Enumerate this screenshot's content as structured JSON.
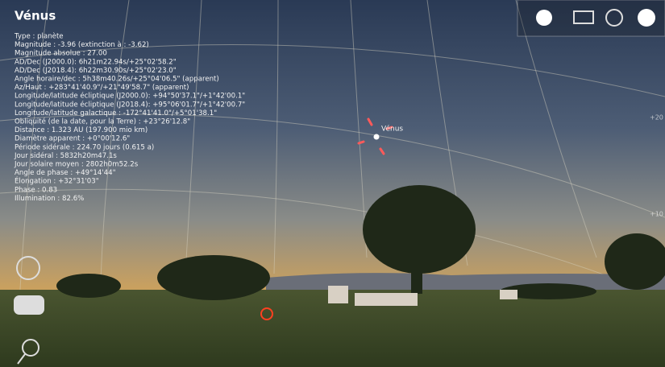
{
  "object": {
    "name": "Vénus",
    "sky_label": "Vénus",
    "info_lines": [
      "Type : planète",
      "Magnitude : -3.96 (extinction à : -3.62)",
      "Magnitude absolue : 27.00",
      "AD/Dec (J2000.0): 6h21m22.94s/+25°02'58.2\"",
      "AD/Dec (J2018.4): 6h22m30.90s/+25°02'23.0\"",
      "Angle horaire/dec : 5h38m40.26s/+25°04'06.5\" (apparent)",
      "Az/Haut : +283°41'40.9\"/+21°49'58.7\" (apparent)",
      "Longitude/latitude écliptique (J2000.0): +94°50'37.1\"/+1°42'00.1\"",
      "Longitude/latitude écliptique (J2018.4): +95°06'01.7\"/+1°42'00.7\"",
      "Longitude/latitude galactique : -172°41'41.0\"/+5°01'38.1\"",
      "Obliquité (de la date, pour la Terre) : +23°26'12.8\"",
      "Distance : 1.323 AU (197.900 mio km)",
      "Diamètre apparent : +0°00'12.6\"",
      "Période sidérale : 224.70 jours (0.615 a)",
      "Jour sidéral : 5832h20m47.1s",
      "Jour solaire moyen : 2802h0m52.2s",
      "Angle de phase : +49°14'44\"",
      "Élongation : +32°31'03\"",
      "Phase : 0.83",
      "Illumination : 82.6%"
    ]
  },
  "grid_labels": [
    "+20",
    "+10"
  ]
}
